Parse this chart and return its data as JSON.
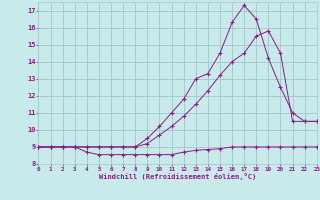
{
  "xlabel": "Windchill (Refroidissement éolien,°C)",
  "bg_color": "#c8eaea",
  "grid_color": "#a0c8c8",
  "line_color": "#8b1a8b",
  "xlim": [
    0,
    23
  ],
  "ylim": [
    8,
    17.5
  ],
  "xticks": [
    0,
    1,
    2,
    3,
    4,
    5,
    6,
    7,
    8,
    9,
    10,
    11,
    12,
    13,
    14,
    15,
    16,
    17,
    18,
    19,
    20,
    21,
    22,
    23
  ],
  "yticks": [
    8,
    9,
    10,
    11,
    12,
    13,
    14,
    15,
    16,
    17
  ],
  "line1_x": [
    0,
    1,
    2,
    3,
    4,
    5,
    6,
    7,
    8,
    9,
    10,
    11,
    12,
    13,
    14,
    15,
    16,
    17,
    18,
    19,
    20,
    21,
    22,
    23
  ],
  "line1_y": [
    9.0,
    9.0,
    9.0,
    9.0,
    8.7,
    8.55,
    8.55,
    8.55,
    8.55,
    8.55,
    8.55,
    8.55,
    8.7,
    8.8,
    8.85,
    8.9,
    9.0,
    9.0,
    9.0,
    9.0,
    9.0,
    9.0,
    9.0,
    9.0
  ],
  "line2_x": [
    0,
    1,
    2,
    3,
    4,
    5,
    6,
    7,
    8,
    9,
    10,
    11,
    12,
    13,
    14,
    15,
    16,
    17,
    18,
    19,
    20,
    21,
    22,
    23
  ],
  "line2_y": [
    9.0,
    9.0,
    9.0,
    9.0,
    9.0,
    9.0,
    9.0,
    9.0,
    9.0,
    9.5,
    10.2,
    11.0,
    11.8,
    13.0,
    13.3,
    14.5,
    16.3,
    17.3,
    16.5,
    14.2,
    12.5,
    11.0,
    10.5,
    10.5
  ],
  "line3_x": [
    0,
    1,
    2,
    3,
    4,
    5,
    6,
    7,
    8,
    9,
    10,
    11,
    12,
    13,
    14,
    15,
    16,
    17,
    18,
    19,
    20,
    21,
    22,
    23
  ],
  "line3_y": [
    9.0,
    9.0,
    9.0,
    9.0,
    9.0,
    9.0,
    9.0,
    9.0,
    9.0,
    9.2,
    9.7,
    10.2,
    10.8,
    11.5,
    12.3,
    13.2,
    14.0,
    14.5,
    15.5,
    15.8,
    14.5,
    10.5,
    10.5,
    10.5
  ]
}
